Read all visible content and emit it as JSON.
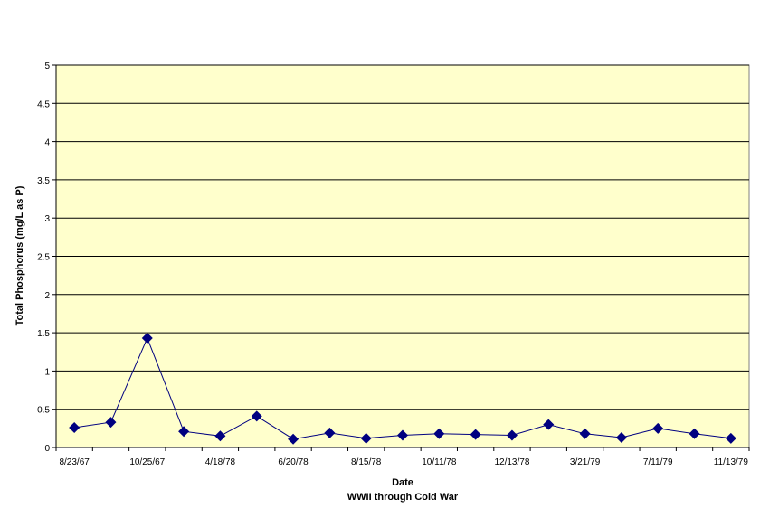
{
  "chart_data": {
    "type": "line",
    "title": "",
    "xlabel": "Date",
    "xlabel_sub": "WWII through Cold War",
    "ylabel": "Total Phosphorus (mg/L as P)",
    "ylim": [
      0,
      5
    ],
    "yticks": [
      "0",
      "0.5",
      "1",
      "1.5",
      "2",
      "2.5",
      "3",
      "3.5",
      "4",
      "4.5",
      "5"
    ],
    "x_tick_labels": [
      "8/23/67",
      "10/25/67",
      "4/18/78",
      "6/20/78",
      "8/15/78",
      "10/11/78",
      "12/13/78",
      "3/21/79",
      "7/11/79",
      "11/13/79"
    ],
    "grid": "horizontal",
    "legend": "none",
    "plot_background": "#FFFFCC",
    "series_color": "#000080",
    "marker": "diamond",
    "series": [
      {
        "values": [
          0.26,
          0.33,
          1.43,
          0.21,
          0.15,
          0.41,
          0.11,
          0.19,
          0.12,
          0.16,
          0.18,
          0.17,
          0.16,
          0.3,
          0.18,
          0.13,
          0.25,
          0.18,
          0.12
        ]
      }
    ]
  }
}
